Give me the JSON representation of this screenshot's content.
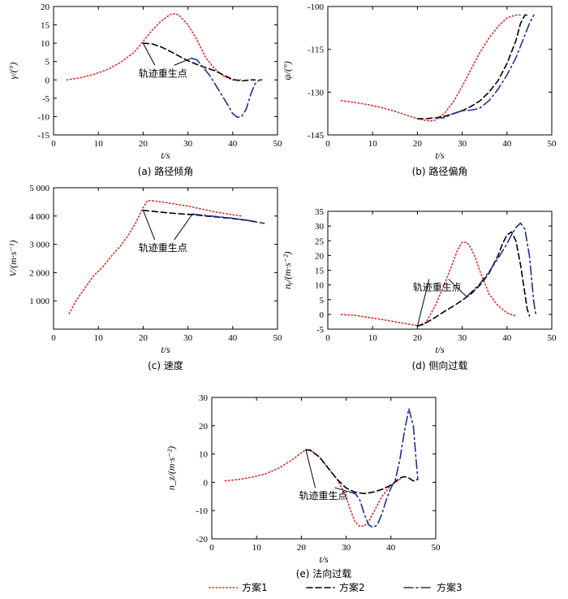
{
  "colors": {
    "scheme1": "#e8211e",
    "scheme2": "#000000",
    "scheme3": "#1f2f8f"
  },
  "legend": [
    {
      "name": "方案1",
      "style": "dotted",
      "color": "#e8211e"
    },
    {
      "name": "方案2",
      "style": "dashed",
      "color": "#000000"
    },
    {
      "name": "方案3",
      "style": "dashdot",
      "color": "#1f2f8f"
    }
  ],
  "chart_data": [
    {
      "type": "line",
      "caption": "(a) 路径倾角",
      "xlabel": "t/s",
      "ylabel": "γ/(°)",
      "xlim": [
        0,
        50
      ],
      "ylim": [
        -15,
        20
      ],
      "xticks": [
        0,
        10,
        20,
        30,
        40,
        50
      ],
      "yticks": [
        -15,
        -10,
        -5,
        0,
        5,
        10,
        15,
        20
      ],
      "ytick_labels": [
        "-15",
        "-10",
        "-5",
        "0",
        "5",
        "10",
        "15",
        "20"
      ],
      "annotation": {
        "text": "轨迹重生点",
        "targets": [
          [
            20,
            10
          ],
          [
            31,
            6
          ]
        ]
      },
      "series": [
        {
          "name": "方案1",
          "x": [
            3,
            6,
            9,
            12,
            15,
            18,
            20,
            22,
            24,
            26,
            27,
            28,
            30,
            32,
            34,
            36,
            38,
            40,
            42
          ],
          "y": [
            0,
            0.6,
            1.5,
            2.8,
            4.8,
            7.5,
            10.5,
            13.5,
            16,
            17.8,
            18,
            17.7,
            15,
            11,
            6,
            3,
            1,
            0,
            0
          ]
        },
        {
          "name": "方案2",
          "x": [
            20,
            22,
            24,
            26,
            28,
            30,
            32,
            34,
            36,
            38,
            40,
            42,
            44,
            45
          ],
          "y": [
            10,
            9.8,
            9,
            7.8,
            6.5,
            5.2,
            4.2,
            3.3,
            2.5,
            1.3,
            0.1,
            -0.3,
            0,
            0
          ]
        },
        {
          "name": "方案3",
          "x": [
            31,
            32,
            33,
            34,
            35,
            36,
            37,
            38,
            39,
            40,
            41,
            42,
            43,
            44,
            45,
            46,
            46.5
          ],
          "y": [
            5.8,
            5.5,
            4,
            2.5,
            1,
            -1,
            -3,
            -5,
            -7,
            -9.2,
            -10.2,
            -10,
            -8,
            -4,
            -1,
            0,
            0
          ]
        }
      ]
    },
    {
      "type": "line",
      "caption": "(b) 路径偏角",
      "xlabel": "t/s",
      "ylabel": "ψ/(°)",
      "xlim": [
        0,
        50
      ],
      "ylim": [
        -145,
        -100
      ],
      "xticks": [
        0,
        10,
        20,
        30,
        40,
        50
      ],
      "yticks": [
        -145,
        -130,
        -115,
        -100
      ],
      "ytick_labels": [
        "-145",
        "-130",
        "-115",
        "-100"
      ],
      "series": [
        {
          "name": "方案1",
          "x": [
            3,
            6,
            9,
            12,
            15,
            18,
            20,
            22,
            23,
            24,
            26,
            28,
            30,
            32,
            34,
            36,
            38,
            40,
            42,
            43
          ],
          "y": [
            -133,
            -133.6,
            -134.4,
            -135.4,
            -136.7,
            -138.3,
            -139.3,
            -140,
            -140.1,
            -139.8,
            -137.5,
            -133.5,
            -128,
            -122,
            -116,
            -111,
            -107,
            -104,
            -103,
            -103
          ]
        },
        {
          "name": "方案2",
          "x": [
            20,
            22,
            24,
            26,
            28,
            30,
            32,
            34,
            36,
            38,
            40,
            42,
            43,
            44,
            45
          ],
          "y": [
            -139.3,
            -139.3,
            -139,
            -138.5,
            -137.6,
            -136.5,
            -135,
            -133,
            -130,
            -126,
            -120,
            -112,
            -106,
            -103,
            -103
          ]
        },
        {
          "name": "方案3",
          "x": [
            24,
            26,
            28,
            30,
            32,
            33,
            34,
            36,
            38,
            40,
            42,
            44,
            45,
            46
          ],
          "y": [
            -139,
            -139,
            -137.5,
            -136.5,
            -136.3,
            -136,
            -135.5,
            -133,
            -129,
            -124,
            -118,
            -110,
            -106,
            -103
          ]
        }
      ]
    },
    {
      "type": "line",
      "caption": "(c) 速度",
      "xlabel": "t/s",
      "ylabel": "V/(m·s⁻¹)",
      "xlim": [
        0,
        50
      ],
      "ylim": [
        0,
        5000
      ],
      "xticks": [
        0,
        10,
        20,
        30,
        40,
        50
      ],
      "yticks": [
        1000,
        2000,
        3000,
        4000,
        5000
      ],
      "ytick_labels": [
        "1 000",
        "2 000",
        "3 000",
        "4 000",
        "5 000"
      ],
      "annotation": {
        "text": "轨迹重生点",
        "targets": [
          [
            20,
            4200
          ],
          [
            31,
            4070
          ]
        ]
      },
      "series": [
        {
          "name": "方案1",
          "x": [
            3.5,
            5,
            7,
            9,
            11,
            13,
            15,
            17,
            18.5,
            20,
            21,
            22,
            25,
            28,
            30,
            33,
            36,
            39,
            42
          ],
          "y": [
            550,
            1000,
            1450,
            1900,
            2200,
            2600,
            2950,
            3400,
            3800,
            4300,
            4550,
            4540,
            4480,
            4400,
            4350,
            4250,
            4150,
            4070,
            4000
          ]
        },
        {
          "name": "方案2",
          "x": [
            20,
            22,
            25,
            28,
            31,
            34,
            37,
            40,
            43,
            45
          ],
          "y": [
            4200,
            4170,
            4120,
            4080,
            4050,
            4000,
            3960,
            3910,
            3850,
            3800
          ]
        },
        {
          "name": "方案3",
          "x": [
            31,
            34,
            37,
            40,
            43,
            45,
            47
          ],
          "y": [
            4070,
            4020,
            3970,
            3920,
            3860,
            3800,
            3740
          ]
        }
      ]
    },
    {
      "type": "line",
      "caption": "(d) 侧向过载",
      "xlabel": "t/s",
      "ylabel": "nᵧ/(m·s⁻²)",
      "xlim": [
        0,
        50
      ],
      "ylim": [
        -5,
        35
      ],
      "xticks": [
        0,
        10,
        20,
        30,
        40,
        50
      ],
      "yticks": [
        -5,
        0,
        5,
        10,
        15,
        20,
        25,
        30,
        35
      ],
      "ytick_labels": [
        "-5",
        "0",
        "5",
        "10",
        "15",
        "20",
        "25",
        "30",
        "35"
      ],
      "annotation": {
        "text": "轨迹重生点",
        "targets": [
          [
            20,
            -4
          ],
          [
            31,
            6
          ]
        ]
      },
      "series": [
        {
          "name": "方案1",
          "x": [
            3,
            6,
            9,
            12,
            15,
            18,
            20,
            21,
            22,
            24,
            26,
            28,
            29,
            30,
            31,
            32,
            33,
            34,
            36,
            38,
            40,
            42
          ],
          "y": [
            0,
            -0.3,
            -1,
            -1.7,
            -2.5,
            -3.3,
            -3.8,
            -3.8,
            -2.5,
            3,
            10,
            18,
            22,
            24.5,
            24.5,
            22.5,
            19,
            14.5,
            7,
            3,
            0.5,
            -0.5
          ]
        },
        {
          "name": "方案2",
          "x": [
            20,
            22,
            24,
            26,
            28,
            30,
            32,
            34,
            36,
            38,
            39,
            40,
            41,
            42,
            43,
            44,
            44.5,
            45
          ],
          "y": [
            -4,
            -2.8,
            -1,
            1,
            2.8,
            4.8,
            7,
            10,
            14,
            20,
            24,
            27,
            28,
            25,
            17,
            7,
            2,
            -0.5
          ]
        },
        {
          "name": "方案3",
          "x": [
            31,
            32,
            34,
            36,
            38,
            40,
            41,
            42,
            43,
            44,
            45,
            45.5,
            46,
            46.5
          ],
          "y": [
            6,
            7.5,
            10.5,
            14.5,
            19,
            24,
            27,
            29.5,
            31,
            29,
            20,
            12,
            4,
            -0.5
          ]
        }
      ]
    },
    {
      "type": "line",
      "caption": "(e) 法向过载",
      "xlabel": "t/s",
      "ylabel": "n_z/(m·s⁻²)",
      "xlim": [
        0,
        50
      ],
      "ylim": [
        -20,
        30
      ],
      "xticks": [
        0,
        10,
        20,
        30,
        40,
        50
      ],
      "yticks": [
        -20,
        -10,
        0,
        10,
        20,
        30
      ],
      "ytick_labels": [
        "-20",
        "-10",
        "0",
        "10",
        "20",
        "30"
      ],
      "annotation": {
        "text": "轨迹重生点",
        "targets": [
          [
            21,
            11.5
          ],
          [
            31,
            -3.5
          ]
        ]
      },
      "series": [
        {
          "name": "方案1",
          "x": [
            3,
            6,
            9,
            12,
            15,
            18,
            20,
            21,
            22,
            24,
            26,
            28,
            30,
            31,
            32,
            33,
            34,
            35,
            36,
            38,
            40,
            42
          ],
          "y": [
            0.5,
            1,
            1.8,
            3,
            5,
            8,
            10.5,
            11.5,
            11.5,
            9,
            5,
            1,
            -5,
            -10,
            -14,
            -15.5,
            -15.5,
            -14,
            -11,
            -5,
            -1,
            1
          ]
        },
        {
          "name": "方案2",
          "x": [
            21,
            22,
            24,
            26,
            28,
            30,
            32,
            34,
            36,
            38,
            40,
            42,
            43,
            44,
            45,
            46
          ],
          "y": [
            11.5,
            11.3,
            9,
            5,
            1,
            -2,
            -3.5,
            -4,
            -3.5,
            -2.5,
            -1,
            1.5,
            2,
            1.5,
            0.5,
            1
          ]
        },
        {
          "name": "方案3",
          "x": [
            31,
            32,
            33,
            34,
            35,
            36,
            37,
            38,
            39,
            40,
            41,
            42,
            43,
            44,
            45,
            45.5,
            46
          ],
          "y": [
            -3.5,
            -4,
            -6,
            -11,
            -15,
            -16,
            -15,
            -11,
            -6,
            -2,
            1,
            8,
            18,
            26,
            20,
            10,
            1
          ]
        }
      ]
    }
  ]
}
